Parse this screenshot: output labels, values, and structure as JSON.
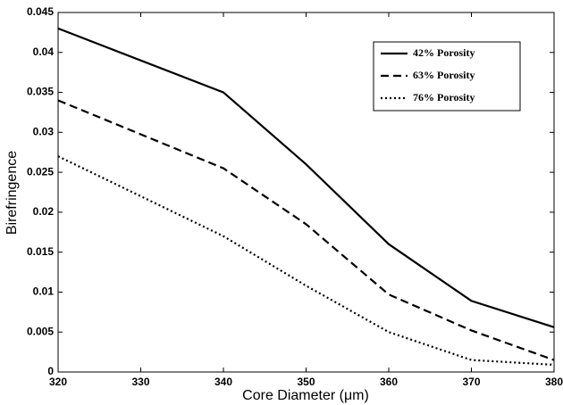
{
  "chart_data": {
    "type": "line",
    "xlabel": "Core Diameter (μm)",
    "ylabel": "Birefringence",
    "x": [
      320,
      340,
      350,
      360,
      370,
      380
    ],
    "series": [
      {
        "name": "42% Porosity",
        "color": "#000000",
        "dash": "solid",
        "values": [
          0.043,
          0.035,
          0.026,
          0.016,
          0.0089,
          0.0056
        ]
      },
      {
        "name": "63% Porosity",
        "color": "#000000",
        "dash": "dashed",
        "values": [
          0.034,
          0.0255,
          0.0185,
          0.0097,
          0.0052,
          0.0015
        ]
      },
      {
        "name": "76% Porosity",
        "color": "#000000",
        "dash": "dotted",
        "values": [
          0.027,
          0.017,
          0.0108,
          0.005,
          0.0015,
          0.0009
        ]
      }
    ],
    "xlim": [
      320,
      380
    ],
    "xticks": [
      320,
      330,
      340,
      350,
      360,
      370,
      380
    ],
    "ylim": [
      0,
      0.045
    ],
    "yticks": [
      0,
      0.005,
      0.01,
      0.015,
      0.02,
      0.025,
      0.03,
      0.035,
      0.04,
      0.045
    ],
    "grid": false,
    "legend": "upper right"
  }
}
